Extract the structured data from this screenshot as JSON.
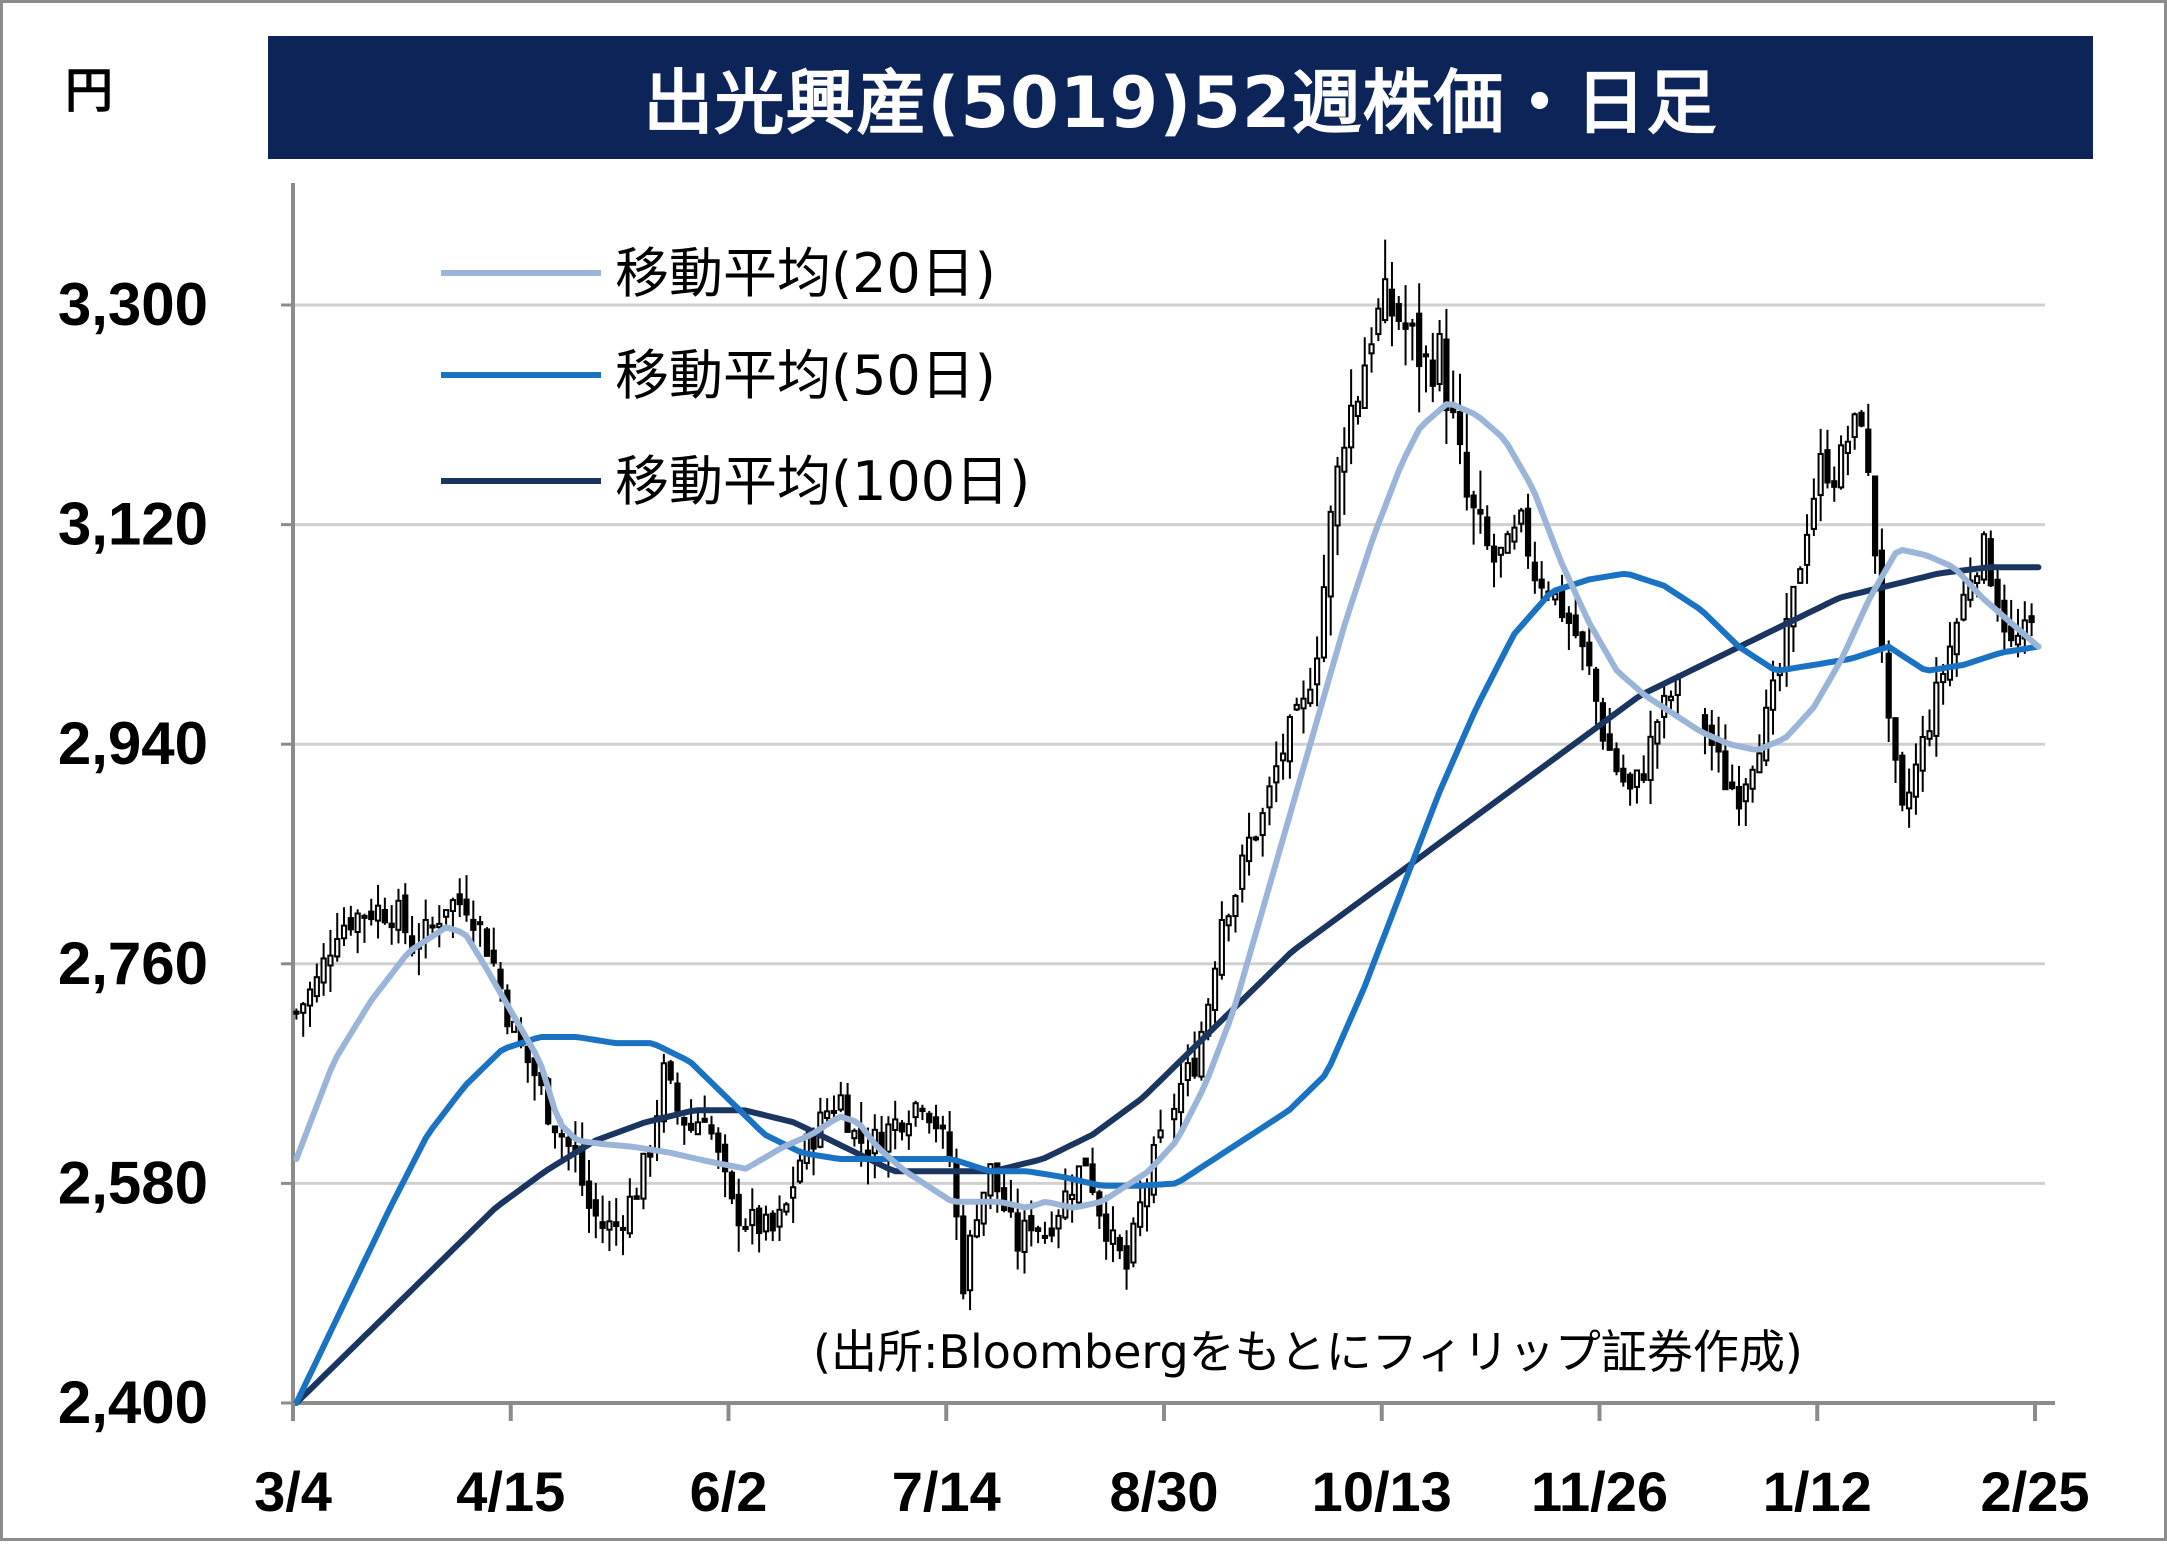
{
  "chart_data": {
    "type": "candlestick",
    "title": "出光興産(5019)52週株価・日足",
    "ylabel": "円",
    "ylim": [
      2400,
      3300
    ],
    "y_ticks": [
      "2,400",
      "2,580",
      "2,760",
      "2,940",
      "3,120",
      "3,300"
    ],
    "y_tick_values": [
      2400,
      2580,
      2760,
      2940,
      3120,
      3300
    ],
    "x_ticks": [
      "3/4",
      "4/15",
      "6/2",
      "7/14",
      "8/30",
      "10/13",
      "11/26",
      "1/12",
      "2/25"
    ],
    "source": "(出所:Bloombergをもとにフィリップ証券作成)",
    "legend": [
      "移動平均(20日)",
      "移動平均(50日)",
      "移動平均(100日)"
    ],
    "colors": {
      "ma20": "#9bb5d8",
      "ma50": "#1a73c2",
      "ma100": "#1a3560",
      "title_bg": "#0d2459",
      "grid": "#d0d0d0",
      "axis": "#8c8c8c"
    },
    "close_path": [
      [
        0,
        2720
      ],
      [
        3,
        2745
      ],
      [
        6,
        2790
      ],
      [
        9,
        2800
      ],
      [
        12,
        2805
      ],
      [
        15,
        2800
      ],
      [
        17,
        2775
      ],
      [
        20,
        2790
      ],
      [
        22,
        2810
      ],
      [
        25,
        2810
      ],
      [
        27,
        2790
      ],
      [
        29,
        2760
      ],
      [
        31,
        2720
      ],
      [
        33,
        2690
      ],
      [
        35,
        2670
      ],
      [
        37,
        2640
      ],
      [
        39,
        2620
      ],
      [
        41,
        2600
      ],
      [
        43,
        2560
      ],
      [
        45,
        2545
      ],
      [
        47,
        2545
      ],
      [
        50,
        2575
      ],
      [
        52,
        2610
      ],
      [
        54,
        2670
      ],
      [
        56,
        2640
      ],
      [
        58,
        2625
      ],
      [
        60,
        2640
      ],
      [
        62,
        2600
      ],
      [
        64,
        2560
      ],
      [
        66,
        2550
      ],
      [
        68,
        2545
      ],
      [
        70,
        2540
      ],
      [
        72,
        2560
      ],
      [
        74,
        2600
      ],
      [
        76,
        2620
      ],
      [
        78,
        2640
      ],
      [
        80,
        2650
      ],
      [
        82,
        2620
      ],
      [
        84,
        2610
      ],
      [
        86,
        2620
      ],
      [
        88,
        2630
      ],
      [
        90,
        2640
      ],
      [
        92,
        2650
      ],
      [
        94,
        2630
      ],
      [
        96,
        2600
      ],
      [
        98,
        2500
      ],
      [
        100,
        2560
      ],
      [
        102,
        2590
      ],
      [
        104,
        2560
      ],
      [
        106,
        2530
      ],
      [
        108,
        2550
      ],
      [
        110,
        2540
      ],
      [
        112,
        2560
      ],
      [
        114,
        2580
      ],
      [
        116,
        2600
      ],
      [
        118,
        2560
      ],
      [
        120,
        2530
      ],
      [
        122,
        2510
      ],
      [
        124,
        2560
      ],
      [
        126,
        2600
      ],
      [
        128,
        2630
      ],
      [
        130,
        2660
      ],
      [
        132,
        2680
      ],
      [
        134,
        2730
      ],
      [
        136,
        2800
      ],
      [
        138,
        2820
      ],
      [
        140,
        2860
      ],
      [
        142,
        2880
      ],
      [
        144,
        2920
      ],
      [
        146,
        2950
      ],
      [
        148,
        2970
      ],
      [
        150,
        3020
      ],
      [
        152,
        3120
      ],
      [
        154,
        3200
      ],
      [
        156,
        3230
      ],
      [
        158,
        3280
      ],
      [
        160,
        3300
      ],
      [
        162,
        3290
      ],
      [
        164,
        3270
      ],
      [
        166,
        3250
      ],
      [
        168,
        3260
      ],
      [
        170,
        3200
      ],
      [
        172,
        3140
      ],
      [
        174,
        3110
      ],
      [
        176,
        3090
      ],
      [
        178,
        3100
      ],
      [
        180,
        3120
      ],
      [
        182,
        3080
      ],
      [
        184,
        3070
      ],
      [
        186,
        3050
      ],
      [
        188,
        3030
      ],
      [
        190,
        3000
      ],
      [
        192,
        2950
      ],
      [
        194,
        2920
      ],
      [
        196,
        2900
      ],
      [
        198,
        2920
      ],
      [
        200,
        2960
      ],
      [
        202,
        2980
      ],
      [
        204,
        2990
      ],
      [
        206,
        2970
      ],
      [
        208,
        2940
      ],
      [
        210,
        2910
      ],
      [
        212,
        2900
      ],
      [
        214,
        2930
      ],
      [
        216,
        2960
      ],
      [
        218,
        3000
      ],
      [
        220,
        3060
      ],
      [
        222,
        3120
      ],
      [
        224,
        3170
      ],
      [
        226,
        3160
      ],
      [
        228,
        3190
      ],
      [
        230,
        3210
      ],
      [
        232,
        3100
      ],
      [
        234,
        2950
      ],
      [
        236,
        2880
      ],
      [
        238,
        2920
      ],
      [
        240,
        2960
      ],
      [
        242,
        3000
      ],
      [
        244,
        3040
      ],
      [
        246,
        3080
      ],
      [
        248,
        3100
      ],
      [
        250,
        3060
      ],
      [
        252,
        3020
      ],
      [
        254,
        3030
      ],
      [
        256,
        3040
      ]
    ],
    "ma20_path": [
      [
        0,
        2600
      ],
      [
        4,
        2680
      ],
      [
        8,
        2730
      ],
      [
        12,
        2770
      ],
      [
        16,
        2790
      ],
      [
        18,
        2785
      ],
      [
        20,
        2760
      ],
      [
        23,
        2720
      ],
      [
        26,
        2680
      ],
      [
        28,
        2630
      ],
      [
        30,
        2615
      ],
      [
        33,
        2612
      ],
      [
        36,
        2610
      ],
      [
        40,
        2605
      ],
      [
        44,
        2598
      ],
      [
        48,
        2592
      ],
      [
        52,
        2610
      ],
      [
        55,
        2620
      ],
      [
        58,
        2635
      ],
      [
        60,
        2630
      ],
      [
        62,
        2610
      ],
      [
        65,
        2590
      ],
      [
        68,
        2575
      ],
      [
        70,
        2565
      ],
      [
        72,
        2565
      ],
      [
        75,
        2565
      ],
      [
        78,
        2560
      ],
      [
        80,
        2565
      ],
      [
        83,
        2560
      ],
      [
        86,
        2565
      ],
      [
        88,
        2575
      ],
      [
        91,
        2590
      ],
      [
        94,
        2615
      ],
      [
        97,
        2660
      ],
      [
        100,
        2720
      ],
      [
        103,
        2800
      ],
      [
        106,
        2880
      ],
      [
        109,
        2960
      ],
      [
        112,
        3040
      ],
      [
        115,
        3110
      ],
      [
        118,
        3170
      ],
      [
        120,
        3200
      ],
      [
        123,
        3220
      ],
      [
        126,
        3210
      ],
      [
        129,
        3190
      ],
      [
        132,
        3150
      ],
      [
        135,
        3090
      ],
      [
        138,
        3040
      ],
      [
        141,
        3000
      ],
      [
        144,
        2980
      ],
      [
        147,
        2965
      ],
      [
        150,
        2950
      ],
      [
        153,
        2940
      ],
      [
        156,
        2935
      ],
      [
        159,
        2945
      ],
      [
        162,
        2970
      ],
      [
        165,
        3010
      ],
      [
        168,
        3060
      ],
      [
        171,
        3100
      ],
      [
        174,
        3095
      ],
      [
        177,
        3085
      ],
      [
        180,
        3060
      ],
      [
        183,
        3040
      ],
      [
        186,
        3020
      ]
    ],
    "ma50_path": [
      [
        0,
        2400
      ],
      [
        5,
        2480
      ],
      [
        10,
        2560
      ],
      [
        14,
        2620
      ],
      [
        18,
        2660
      ],
      [
        22,
        2690
      ],
      [
        26,
        2700
      ],
      [
        30,
        2700
      ],
      [
        34,
        2695
      ],
      [
        38,
        2695
      ],
      [
        42,
        2680
      ],
      [
        46,
        2650
      ],
      [
        50,
        2620
      ],
      [
        54,
        2605
      ],
      [
        58,
        2600
      ],
      [
        62,
        2600
      ],
      [
        66,
        2600
      ],
      [
        70,
        2600
      ],
      [
        74,
        2590
      ],
      [
        78,
        2590
      ],
      [
        82,
        2585
      ],
      [
        86,
        2578
      ],
      [
        90,
        2578
      ],
      [
        94,
        2580
      ],
      [
        98,
        2600
      ],
      [
        102,
        2620
      ],
      [
        106,
        2640
      ],
      [
        110,
        2670
      ],
      [
        114,
        2740
      ],
      [
        118,
        2820
      ],
      [
        122,
        2900
      ],
      [
        126,
        2970
      ],
      [
        130,
        3030
      ],
      [
        134,
        3065
      ],
      [
        138,
        3075
      ],
      [
        142,
        3080
      ],
      [
        146,
        3070
      ],
      [
        150,
        3050
      ],
      [
        154,
        3020
      ],
      [
        158,
        3000
      ],
      [
        162,
        3005
      ],
      [
        166,
        3010
      ],
      [
        170,
        3020
      ],
      [
        174,
        3000
      ],
      [
        178,
        3005
      ],
      [
        182,
        3015
      ],
      [
        186,
        3020
      ]
    ],
    "ma100_path": [
      [
        0,
        2400
      ],
      [
        5,
        2440
      ],
      [
        10,
        2480
      ],
      [
        15,
        2520
      ],
      [
        20,
        2560
      ],
      [
        25,
        2590
      ],
      [
        30,
        2615
      ],
      [
        35,
        2630
      ],
      [
        40,
        2640
      ],
      [
        45,
        2640
      ],
      [
        50,
        2630
      ],
      [
        55,
        2610
      ],
      [
        60,
        2590
      ],
      [
        65,
        2590
      ],
      [
        70,
        2590
      ],
      [
        75,
        2600
      ],
      [
        80,
        2620
      ],
      [
        85,
        2650
      ],
      [
        90,
        2690
      ],
      [
        95,
        2730
      ],
      [
        100,
        2770
      ],
      [
        105,
        2800
      ],
      [
        110,
        2830
      ],
      [
        115,
        2860
      ],
      [
        120,
        2890
      ],
      [
        125,
        2920
      ],
      [
        130,
        2950
      ],
      [
        135,
        2980
      ],
      [
        140,
        3000
      ],
      [
        145,
        3020
      ],
      [
        150,
        3040
      ],
      [
        155,
        3060
      ],
      [
        160,
        3070
      ],
      [
        165,
        3080
      ],
      [
        170,
        3085
      ],
      [
        175,
        3085
      ]
    ]
  }
}
